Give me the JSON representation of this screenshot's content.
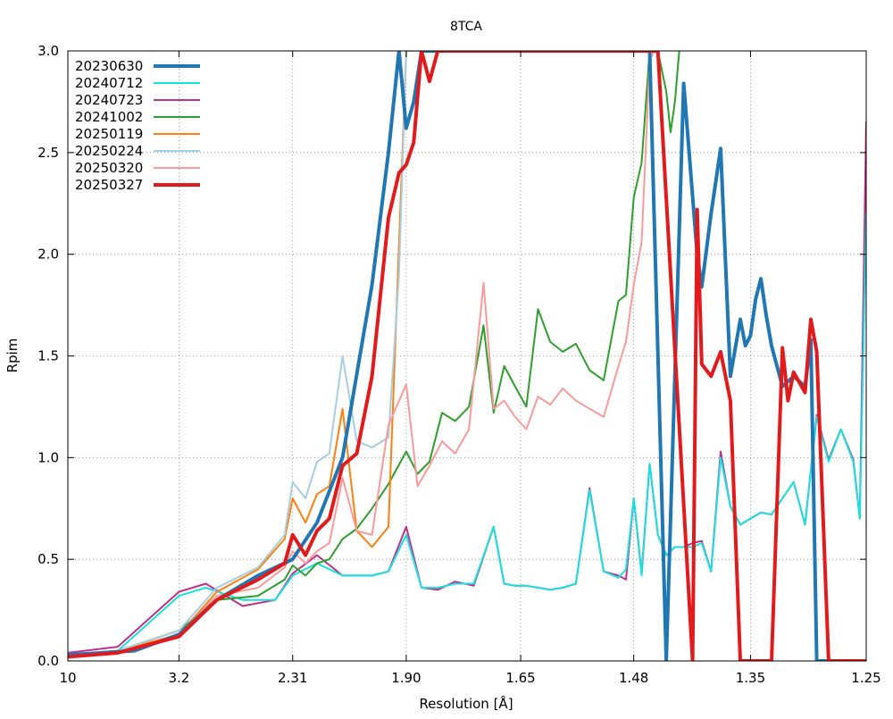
{
  "chart_data": {
    "type": "line",
    "title": "8TCA",
    "xlabel": "Resolution [Å]",
    "ylabel": "Rpim",
    "x_scale": "inverse-square-resolution",
    "xlim": [
      10,
      1.25
    ],
    "ylim": [
      0,
      3.0
    ],
    "x_ticks": [
      "10",
      "3.2",
      "2.31",
      "1.90",
      "1.65",
      "1.48",
      "1.35",
      "1.25"
    ],
    "y_ticks": [
      "0.0",
      "0.5",
      "1.0",
      "1.5",
      "2.0",
      "2.5",
      "3.0"
    ],
    "grid": true,
    "legend_position": "top-left",
    "series": [
      {
        "name": "20230630",
        "color": "#1f77b4",
        "width": 4.0,
        "x": [
          10,
          4.0,
          3.2,
          2.8,
          2.5,
          2.31,
          2.2,
          2.1,
          2.0,
          1.95,
          1.92,
          1.9,
          1.88,
          1.86,
          1.84,
          1.82,
          1.8,
          1.78,
          1.76,
          1.74,
          1.72,
          1.7,
          1.68,
          1.66,
          1.64,
          1.62,
          1.6,
          1.58,
          1.56,
          1.54,
          1.52,
          1.5,
          1.48,
          1.46,
          1.44,
          1.42,
          1.405,
          1.4,
          1.39,
          1.38,
          1.37,
          1.36,
          1.355,
          1.35,
          1.345,
          1.34,
          1.335,
          1.33,
          1.32,
          1.31,
          1.3,
          1.295,
          1.29,
          1.28,
          1.27,
          1.265,
          1.26,
          1.255,
          1.25
        ],
        "y": [
          0.03,
          0.05,
          0.13,
          0.3,
          0.42,
          0.5,
          0.68,
          1.0,
          1.85,
          2.5,
          3.0,
          2.62,
          2.75,
          3.0,
          3.0,
          3.0,
          3.0,
          3.0,
          3.0,
          3.0,
          3.0,
          3.0,
          3.0,
          3.0,
          3.0,
          3.0,
          3.0,
          3.0,
          3.0,
          3.0,
          3.0,
          3.0,
          3.0,
          3.0,
          0.0,
          2.84,
          2.0,
          1.84,
          2.2,
          2.52,
          1.4,
          1.68,
          1.55,
          1.6,
          1.78,
          1.88,
          1.7,
          1.55,
          1.35,
          1.4,
          1.35,
          1.58,
          0.0,
          0.0,
          0.0,
          0.0,
          0.0,
          0.0,
          0.0
        ]
      },
      {
        "name": "20240712",
        "color": "#17e2e2",
        "width": 2.0,
        "x": [
          10,
          4.5,
          3.2,
          2.9,
          2.6,
          2.4,
          2.31,
          2.2,
          2.1,
          2.0,
          1.95,
          1.9,
          1.86,
          1.82,
          1.78,
          1.74,
          1.7,
          1.68,
          1.66,
          1.64,
          1.62,
          1.6,
          1.58,
          1.56,
          1.54,
          1.52,
          1.5,
          1.49,
          1.48,
          1.47,
          1.46,
          1.45,
          1.44,
          1.43,
          1.42,
          1.41,
          1.4,
          1.39,
          1.38,
          1.37,
          1.36,
          1.35,
          1.34,
          1.33,
          1.32,
          1.31,
          1.3,
          1.29,
          1.28,
          1.27,
          1.26,
          1.255,
          1.25
        ],
        "y": [
          0.03,
          0.05,
          0.32,
          0.36,
          0.3,
          0.3,
          0.42,
          0.48,
          0.42,
          0.42,
          0.44,
          0.62,
          0.36,
          0.36,
          0.38,
          0.38,
          0.66,
          0.38,
          0.37,
          0.37,
          0.36,
          0.35,
          0.36,
          0.38,
          0.84,
          0.44,
          0.41,
          0.45,
          0.8,
          0.42,
          0.97,
          0.62,
          0.52,
          0.56,
          0.56,
          0.56,
          0.58,
          0.44,
          1.0,
          0.76,
          0.67,
          0.7,
          0.73,
          0.72,
          0.8,
          0.88,
          0.67,
          1.2,
          0.98,
          1.14,
          0.98,
          0.7,
          2.2
        ]
      },
      {
        "name": "20240723",
        "color": "#c02f8c",
        "width": 2.0,
        "x": [
          10,
          4.5,
          3.2,
          2.9,
          2.6,
          2.4,
          2.31,
          2.2,
          2.1,
          2.0,
          1.95,
          1.9,
          1.86,
          1.82,
          1.78,
          1.74,
          1.7,
          1.68,
          1.66,
          1.64,
          1.62,
          1.6,
          1.58,
          1.56,
          1.54,
          1.52,
          1.5,
          1.49,
          1.48,
          1.47,
          1.46,
          1.45,
          1.44,
          1.43,
          1.42,
          1.41,
          1.4,
          1.39,
          1.38,
          1.37,
          1.36,
          1.35,
          1.34,
          1.33,
          1.32,
          1.31,
          1.3,
          1.29,
          1.28,
          1.27,
          1.26,
          1.255,
          1.25
        ],
        "y": [
          0.04,
          0.07,
          0.34,
          0.38,
          0.27,
          0.3,
          0.43,
          0.52,
          0.42,
          0.42,
          0.44,
          0.66,
          0.36,
          0.35,
          0.39,
          0.37,
          0.66,
          0.38,
          0.37,
          0.37,
          0.36,
          0.35,
          0.36,
          0.38,
          0.85,
          0.44,
          0.42,
          0.4,
          0.8,
          0.43,
          0.97,
          0.62,
          0.52,
          0.56,
          0.56,
          0.58,
          0.59,
          0.44,
          1.03,
          0.76,
          0.67,
          0.7,
          0.73,
          0.72,
          0.8,
          0.88,
          0.67,
          1.21,
          0.99,
          1.14,
          0.99,
          0.7,
          2.65
        ]
      },
      {
        "name": "20241002",
        "color": "#2ca02c",
        "width": 2.0,
        "x": [
          10,
          4.5,
          3.2,
          2.8,
          2.5,
          2.35,
          2.31,
          2.25,
          2.2,
          2.15,
          2.1,
          2.05,
          2.0,
          1.95,
          1.9,
          1.87,
          1.84,
          1.81,
          1.78,
          1.75,
          1.72,
          1.7,
          1.68,
          1.66,
          1.64,
          1.62,
          1.6,
          1.58,
          1.56,
          1.54,
          1.52,
          1.5,
          1.49,
          1.48,
          1.47,
          1.46,
          1.45,
          1.44,
          1.435,
          1.43,
          1.425
        ],
        "y": [
          0.03,
          0.05,
          0.15,
          0.3,
          0.32,
          0.4,
          0.47,
          0.42,
          0.48,
          0.5,
          0.6,
          0.65,
          0.75,
          0.87,
          1.03,
          0.92,
          0.98,
          1.22,
          1.18,
          1.25,
          1.65,
          1.22,
          1.45,
          1.35,
          1.25,
          1.73,
          1.57,
          1.52,
          1.56,
          1.43,
          1.38,
          1.77,
          1.8,
          2.28,
          2.45,
          3.0,
          3.0,
          2.8,
          2.6,
          2.75,
          3.0
        ]
      },
      {
        "name": "20250119",
        "color": "#ff7f0e",
        "width": 2.0,
        "x": [
          10,
          4.5,
          3.2,
          2.8,
          2.5,
          2.35,
          2.31,
          2.25,
          2.2,
          2.15,
          2.1,
          2.05,
          2.0,
          1.95,
          1.9,
          1.85
        ],
        "y": [
          0.02,
          0.05,
          0.13,
          0.34,
          0.45,
          0.6,
          0.8,
          0.68,
          0.82,
          0.86,
          1.24,
          0.64,
          0.56,
          0.66,
          3.0,
          3.0
        ]
      },
      {
        "name": "20250224",
        "color": "#a6cee3",
        "width": 2.0,
        "x": [
          10,
          4.5,
          3.2,
          2.8,
          2.5,
          2.35,
          2.31,
          2.25,
          2.2,
          2.15,
          2.1,
          2.05,
          2.0,
          1.95,
          1.92,
          1.9,
          1.88,
          1.85
        ],
        "y": [
          0.02,
          0.05,
          0.15,
          0.36,
          0.46,
          0.62,
          0.88,
          0.8,
          0.98,
          1.02,
          1.5,
          1.08,
          1.05,
          1.1,
          1.9,
          3.0,
          3.0,
          3.0
        ]
      },
      {
        "name": "20250320",
        "color": "#fb9a99",
        "width": 2.0,
        "x": [
          10,
          4.5,
          3.2,
          2.8,
          2.5,
          2.35,
          2.31,
          2.25,
          2.2,
          2.15,
          2.1,
          2.05,
          2.0,
          1.95,
          1.9,
          1.87,
          1.84,
          1.81,
          1.78,
          1.75,
          1.72,
          1.7,
          1.68,
          1.66,
          1.64,
          1.62,
          1.6,
          1.58,
          1.56,
          1.54,
          1.52,
          1.5,
          1.49,
          1.48,
          1.47,
          1.46,
          1.455
        ],
        "y": [
          0.02,
          0.04,
          0.13,
          0.32,
          0.36,
          0.46,
          0.54,
          0.48,
          0.54,
          0.58,
          0.9,
          0.64,
          0.62,
          1.16,
          1.36,
          0.86,
          0.96,
          1.08,
          1.02,
          1.14,
          1.86,
          1.24,
          1.28,
          1.2,
          1.14,
          1.3,
          1.26,
          1.34,
          1.28,
          1.24,
          1.2,
          1.45,
          1.57,
          1.85,
          2.06,
          2.95,
          3.0
        ]
      },
      {
        "name": "20250327",
        "color": "#e31a1c",
        "width": 4.0,
        "x": [
          10,
          4.5,
          3.2,
          2.8,
          2.5,
          2.35,
          2.31,
          2.25,
          2.2,
          2.15,
          2.1,
          2.05,
          2.0,
          1.95,
          1.92,
          1.9,
          1.88,
          1.86,
          1.84,
          1.82,
          1.8,
          1.75,
          1.7,
          1.65,
          1.6,
          1.55,
          1.5,
          1.45,
          1.41,
          1.405,
          1.4,
          1.39,
          1.38,
          1.37,
          1.36,
          1.355,
          1.35,
          1.345,
          1.34,
          1.335,
          1.33,
          1.32,
          1.315,
          1.31,
          1.3,
          1.295,
          1.29,
          1.28,
          1.27,
          1.26,
          1.25
        ],
        "y": [
          0.02,
          0.04,
          0.12,
          0.3,
          0.4,
          0.48,
          0.62,
          0.52,
          0.64,
          0.7,
          0.96,
          1.02,
          1.4,
          2.18,
          2.4,
          2.44,
          2.55,
          3.0,
          2.85,
          3.0,
          3.0,
          3.0,
          3.0,
          3.0,
          3.0,
          3.0,
          3.0,
          3.0,
          0.0,
          2.22,
          1.46,
          1.4,
          1.52,
          1.28,
          0.0,
          0.0,
          0.0,
          0.0,
          0.0,
          0.0,
          0.0,
          1.54,
          1.28,
          1.42,
          1.32,
          1.68,
          1.52,
          0.0,
          0.0,
          0.0,
          0.0
        ]
      }
    ]
  }
}
